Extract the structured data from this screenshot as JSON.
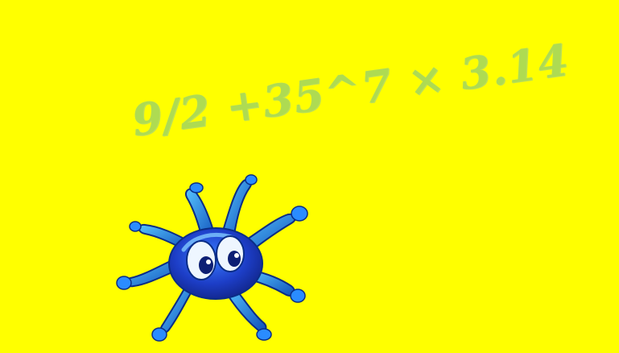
{
  "scene": {
    "background_color": "#ffff00",
    "formula_text": "9/2 +35^7 × 3.14",
    "formula_color": "#a8d85a",
    "mascot": {
      "icon": "blue-splat-character-icon",
      "body_color": "#1a3fd1",
      "highlight_color": "#3aa6ff",
      "eye_white": "#ffffff"
    }
  }
}
